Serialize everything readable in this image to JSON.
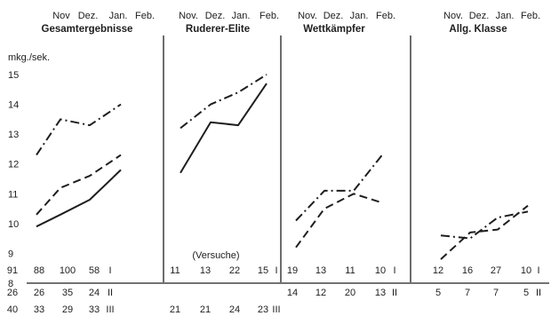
{
  "chart_data": {
    "type": "line",
    "ylabel": "mkg./sek.",
    "ylim": [
      8,
      15
    ],
    "yticks": [
      "8",
      "9",
      "10",
      "11",
      "12",
      "13",
      "14",
      "15"
    ],
    "months": [
      "Nov",
      "Dez.",
      "Jan.",
      "Feb."
    ],
    "series_styles": {
      "I": "dash-dot",
      "II": "dashed",
      "III": "solid"
    },
    "panels": [
      {
        "title": "Gesamtergebnisse",
        "months": [
          "Nov",
          "Dez.",
          "Jan.",
          "Feb."
        ],
        "series": [
          {
            "group": "I",
            "values": [
              12.3,
              13.5,
              13.3,
              14.0
            ]
          },
          {
            "group": "II",
            "values": [
              10.3,
              11.2,
              11.6,
              12.3
            ]
          },
          {
            "group": "III",
            "values": [
              9.9,
              10.3,
              10.8,
              11.8
            ]
          }
        ],
        "counts": [
          {
            "group": "I",
            "values": [
              "91",
              "88",
              "100",
              "58"
            ]
          },
          {
            "group": "II",
            "values": [
              "26",
              "26",
              "35",
              "24"
            ]
          },
          {
            "group": "III",
            "values": [
              "40",
              "33",
              "29",
              "33"
            ]
          }
        ]
      },
      {
        "title": "Ruderer-Elite",
        "months": [
          "Nov.",
          "Dez.",
          "Jan.",
          "Feb."
        ],
        "note": "(Versuche)",
        "series": [
          {
            "group": "I",
            "values": [
              13.2,
              14.0,
              14.4,
              15.0
            ]
          },
          {
            "group": "III",
            "values": [
              11.7,
              13.4,
              13.3,
              14.7
            ]
          }
        ],
        "counts": [
          {
            "group": "I",
            "values": [
              "11",
              "13",
              "22",
              "15"
            ]
          },
          {
            "group": "III",
            "values": [
              "21",
              "21",
              "24",
              "23"
            ]
          }
        ]
      },
      {
        "title": "Wettkämpfer",
        "months": [
          "Nov.",
          "Dez.",
          "Jan.",
          "Feb."
        ],
        "series": [
          {
            "group": "I",
            "values": [
              10.1,
              11.1,
              11.1,
              12.3
            ]
          },
          {
            "group": "II",
            "values": [
              9.2,
              10.5,
              11.0,
              10.7
            ]
          }
        ],
        "counts": [
          {
            "group": "I",
            "values": [
              "19",
              "13",
              "11",
              "10"
            ]
          },
          {
            "group": "II",
            "values": [
              "14",
              "12",
              "20",
              "13"
            ]
          }
        ]
      },
      {
        "title": "Allg. Klasse",
        "months": [
          "Nov.",
          "Dez.",
          "Jan.",
          "Feb."
        ],
        "series": [
          {
            "group": "I",
            "values": [
              9.6,
              9.5,
              10.2,
              10.4
            ]
          },
          {
            "group": "II",
            "values": [
              8.8,
              9.7,
              9.8,
              10.6
            ]
          }
        ],
        "counts": [
          {
            "group": "I",
            "values": [
              "12",
              "16",
              "27",
              "10"
            ]
          },
          {
            "group": "II",
            "values": [
              "5",
              "7",
              "7",
              "5"
            ]
          }
        ]
      }
    ]
  }
}
